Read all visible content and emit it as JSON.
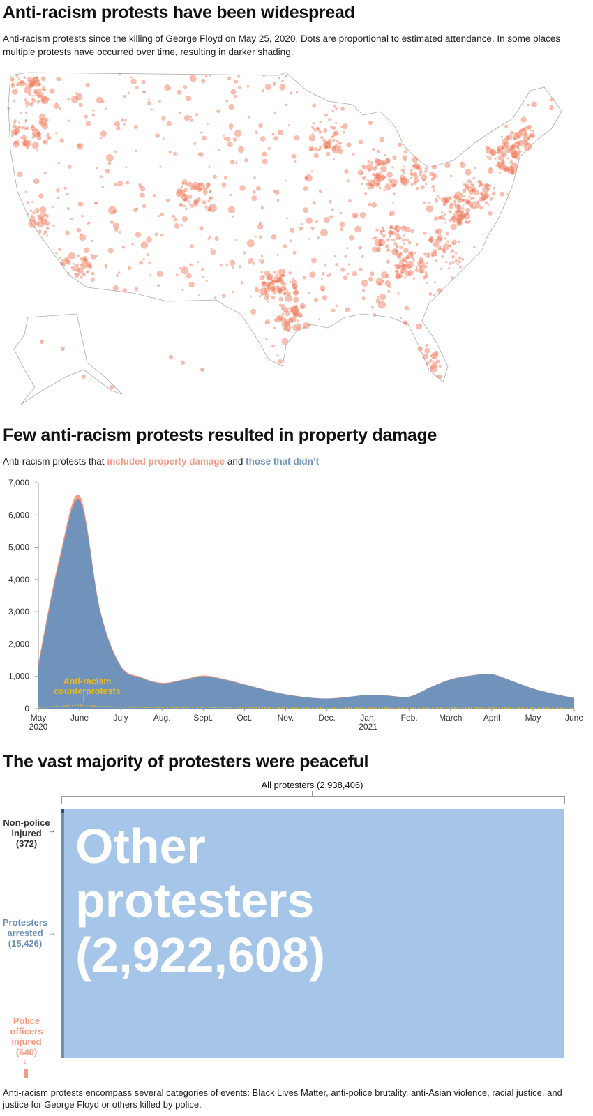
{
  "section1": {
    "title": "Anti-racism protests have been widespread",
    "subtitle": "Anti-racism protests since the killing of George Floyd on May 25, 2020. Dots are proportional to estimated attendance. In some places multiple protests have occurred over time, resulting in darker shading.",
    "dot_color": "#f0714f"
  },
  "section2": {
    "title": "Few anti-racism protests resulted in property damage",
    "subtitle_prefix": "Anti-racism protests that ",
    "subtitle_damage": "included property damage",
    "subtitle_mid": " and ",
    "subtitle_nodamage": "those that didn’t",
    "annotation": "Anti-racism counterprotests"
  },
  "chart_data": {
    "type": "area",
    "title": "Few anti-racism protests resulted in property damage",
    "ylim": [
      0,
      7000
    ],
    "yticks": [
      "0",
      "1,000",
      "2,000",
      "3,000",
      "4,000",
      "5,000",
      "6,000",
      "7,000"
    ],
    "xticks": [
      [
        "May",
        "2020"
      ],
      [
        "June",
        ""
      ],
      [
        "July",
        ""
      ],
      [
        "Aug.",
        ""
      ],
      [
        "Sept.",
        ""
      ],
      [
        "Oct.",
        ""
      ],
      [
        "Nov.",
        ""
      ],
      [
        "Dec.",
        ""
      ],
      [
        "Jan.",
        "2021"
      ],
      [
        "Feb.",
        ""
      ],
      [
        "March",
        ""
      ],
      [
        "April",
        ""
      ],
      [
        "May",
        ""
      ],
      [
        "June",
        ""
      ]
    ],
    "x_months": [
      0,
      0.5,
      1,
      1.5,
      2,
      2.5,
      3,
      3.5,
      4,
      4.5,
      5,
      5.5,
      6,
      6.5,
      7,
      7.5,
      8,
      8.5,
      9,
      9.5,
      10,
      10.5,
      11,
      11.5,
      12,
      12.5,
      13
    ],
    "series": [
      {
        "name": "those that didn't",
        "color": "#7093bb",
        "values": [
          1300,
          4500,
          6450,
          3000,
          1300,
          950,
          780,
          880,
          1000,
          900,
          740,
          580,
          440,
          350,
          310,
          360,
          420,
          400,
          370,
          650,
          900,
          1020,
          1060,
          850,
          620,
          460,
          330
        ]
      },
      {
        "name": "included property damage",
        "color": "#f39a82",
        "values": [
          120,
          120,
          150,
          60,
          40,
          25,
          20,
          20,
          25,
          20,
          15,
          10,
          8,
          6,
          5,
          6,
          8,
          6,
          6,
          8,
          10,
          10,
          12,
          8,
          6,
          5,
          4
        ]
      },
      {
        "name": "Anti-racism counterprotests",
        "color": "#e8b820",
        "values": [
          40,
          70,
          100,
          70,
          50,
          40,
          35,
          35,
          40,
          35,
          30,
          25,
          20,
          18,
          15,
          15,
          18,
          15,
          15,
          20,
          22,
          22,
          22,
          20,
          18,
          15,
          12
        ]
      }
    ]
  },
  "section3": {
    "title": "The vast majority of protesters were peaceful",
    "total_label": "All protesters (2,938,406)",
    "other_label": [
      "Other",
      "protesters",
      "(2,922,608)"
    ],
    "nonpolice": [
      "Non-police",
      "injured",
      "(372)"
    ],
    "arrested": [
      "Protesters",
      "arrested",
      "(15,426)"
    ],
    "police": [
      "Police",
      "officers",
      "injured",
      "(640)"
    ],
    "colors": {
      "other": "#a5c6e8",
      "arrested": "#6d8fb8",
      "nonpolice": "#3d4f66",
      "police": "#f39a82"
    }
  },
  "footnote": "Anti-racism protests encompass several categories of events: Black Lives Matter, anti-police brutality, anti-Asian violence, racial justice, and justice for George Floyd or others killed by police."
}
